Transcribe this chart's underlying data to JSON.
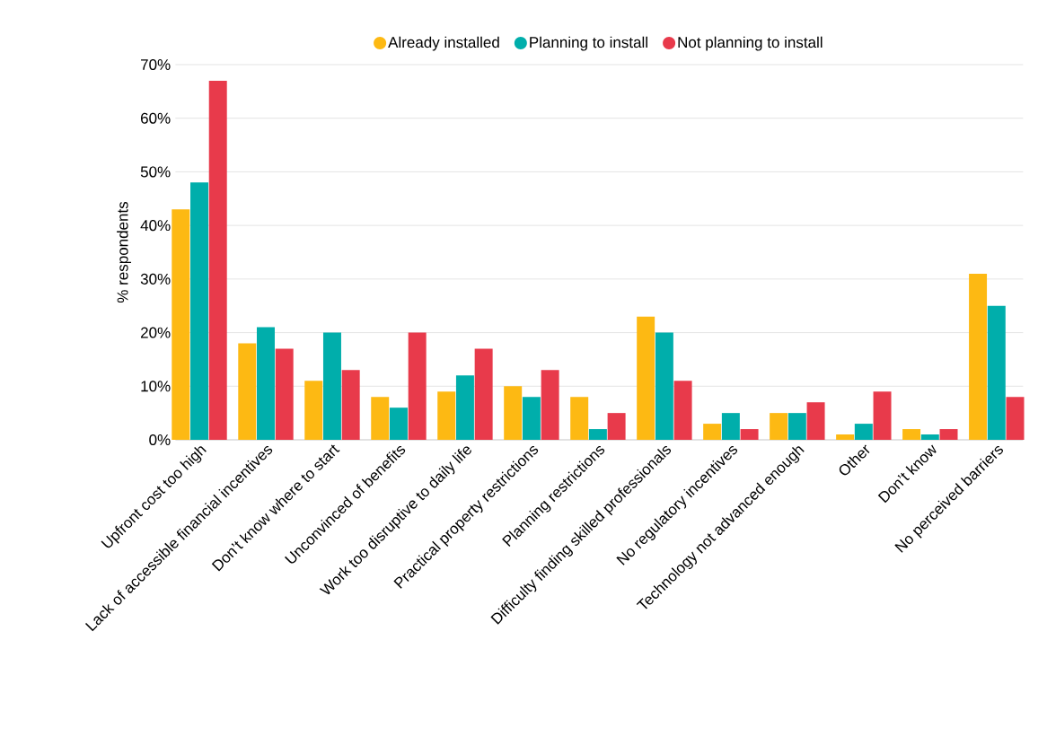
{
  "chart_data": {
    "type": "bar",
    "ylabel": "% respondents",
    "categories": [
      "Upfront cost too high",
      "Lack of accessible financial incentives",
      "Don’t know where to start",
      "Unconvinced of benefits",
      "Work too disruptive to daily life",
      "Practical property restrictions",
      "Planning restrictions",
      "Difficulty finding skilled professionals",
      "No regulatory incentives",
      "Technology not advanced enough",
      "Other",
      "Don’t know",
      "No perceived barriers"
    ],
    "series": [
      {
        "name": "Already installed",
        "color": "#fdb913",
        "values": [
          43,
          18,
          11,
          8,
          9,
          10,
          8,
          23,
          3,
          5,
          1,
          2,
          31
        ]
      },
      {
        "name": "Planning to install",
        "color": "#00aeab",
        "values": [
          48,
          21,
          20,
          6,
          12,
          8,
          2,
          20,
          5,
          5,
          3,
          1,
          25
        ]
      },
      {
        "name": "Not planning to install",
        "color": "#e83a4b",
        "values": [
          67,
          17,
          13,
          20,
          17,
          13,
          5,
          11,
          2,
          7,
          9,
          2,
          8
        ]
      }
    ],
    "ylim": [
      0,
      70
    ],
    "yticks": [
      {
        "value": 0,
        "label": "0%"
      },
      {
        "value": 10,
        "label": "10%"
      },
      {
        "value": 20,
        "label": "20%"
      },
      {
        "value": 30,
        "label": "30%"
      },
      {
        "value": 40,
        "label": "40%"
      },
      {
        "value": 50,
        "label": "50%"
      },
      {
        "value": 60,
        "label": "60%"
      },
      {
        "value": 70,
        "label": "70%"
      }
    ],
    "grid": "y",
    "legend": "top"
  }
}
